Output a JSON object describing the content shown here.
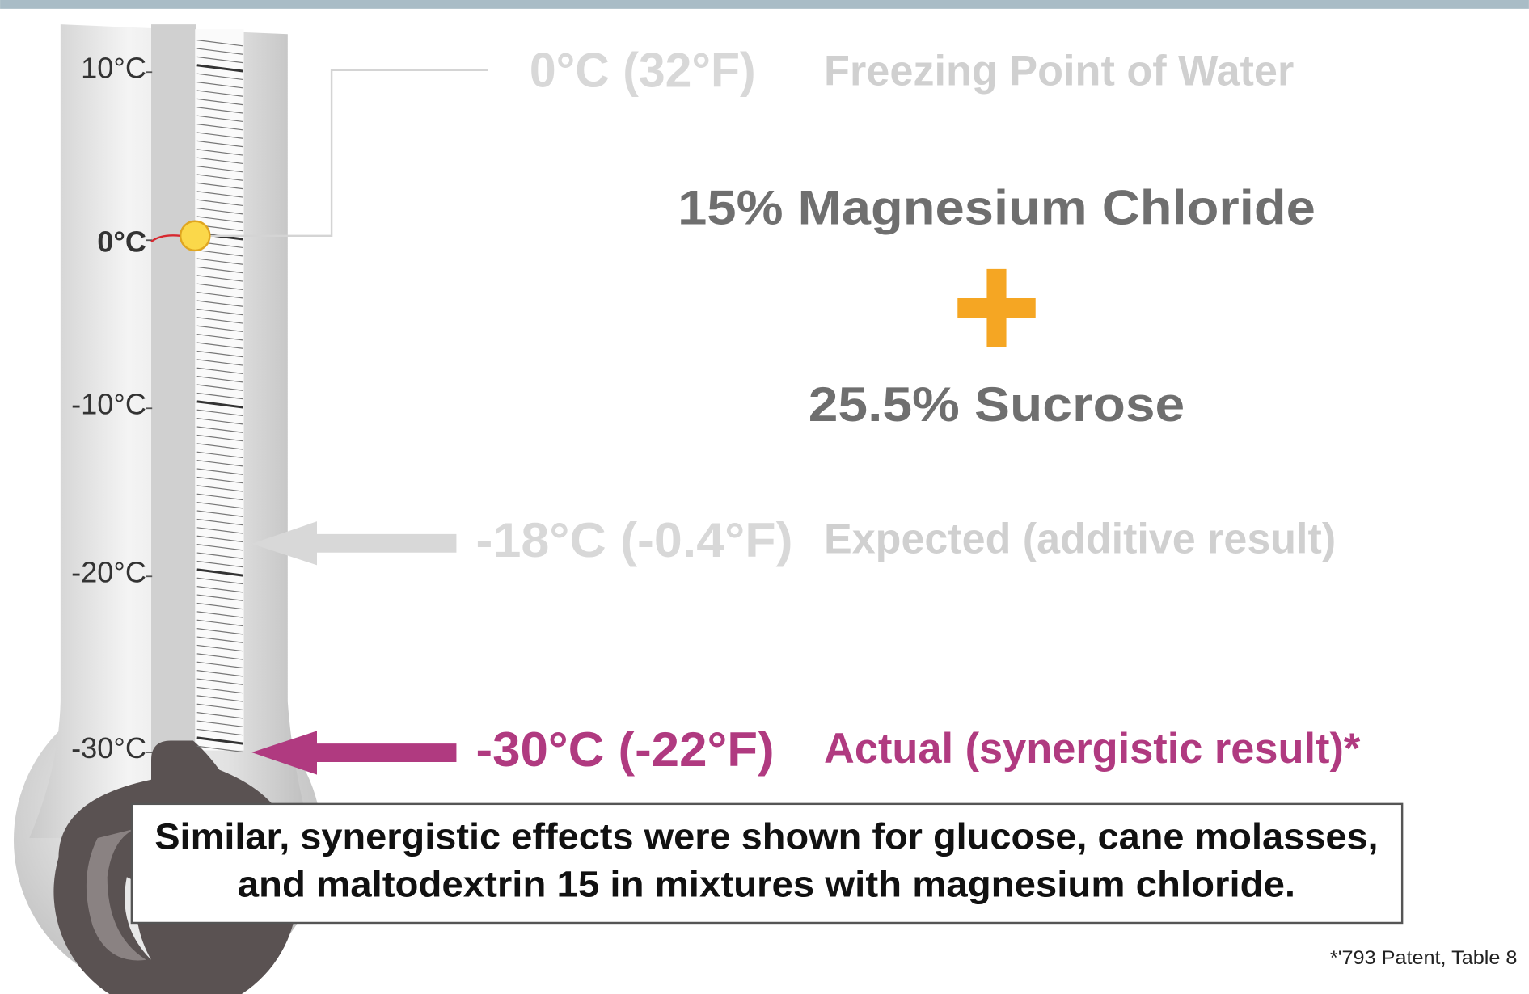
{
  "scale": {
    "labels": [
      "10°C",
      "0°C",
      "-10°C",
      "-20°C",
      "-30°C"
    ]
  },
  "freezing": {
    "temp": "0°C (32°F)",
    "label": "Freezing Point of Water"
  },
  "mixture": {
    "component_1": "15% Magnesium Chloride",
    "component_2": "25.5% Sucrose"
  },
  "expected": {
    "temp": "-18°C (-0.4°F)",
    "label": "Expected (additive result)"
  },
  "actual": {
    "temp": "-30°C (-22°F)",
    "label": "Actual (synergistic result)*"
  },
  "note": {
    "lines": [
      "Similar, synergistic effects were shown for glucose, cane molasses,",
      "and maltodextrin 15 in mixtures with magnesium chloride."
    ]
  },
  "footnote": "*'793 Patent, Table 8"
}
